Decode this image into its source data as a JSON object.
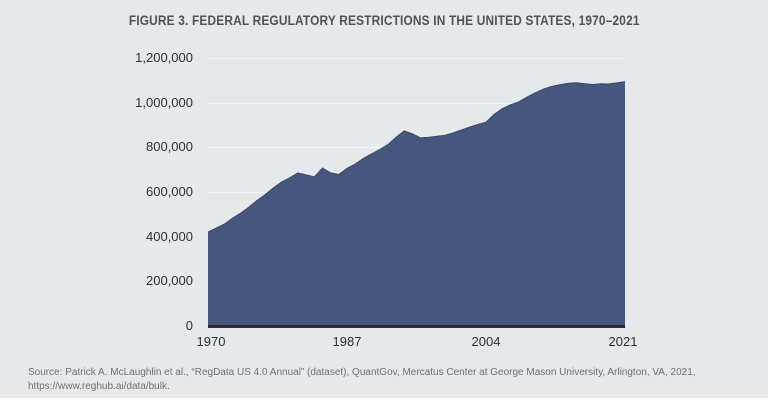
{
  "header": {
    "title": "FIGURE 3. FEDERAL REGULATORY RESTRICTIONS IN THE UNITED STATES, 1970–2021"
  },
  "chart_data": {
    "type": "area",
    "title": "FIGURE 3. FEDERAL REGULATORY RESTRICTIONS IN THE UNITED STATES, 1970–2021",
    "xlabel": "",
    "ylabel": "",
    "xlim": [
      1970,
      2021
    ],
    "ylim": [
      0,
      1200000
    ],
    "grid": true,
    "legend": false,
    "x": [
      1970,
      1971,
      1972,
      1973,
      1974,
      1975,
      1976,
      1977,
      1978,
      1979,
      1980,
      1981,
      1982,
      1983,
      1984,
      1985,
      1986,
      1987,
      1988,
      1989,
      1990,
      1991,
      1992,
      1993,
      1994,
      1995,
      1996,
      1997,
      1998,
      1999,
      2000,
      2001,
      2002,
      2003,
      2004,
      2005,
      2006,
      2007,
      2008,
      2009,
      2010,
      2011,
      2012,
      2013,
      2014,
      2015,
      2016,
      2017,
      2018,
      2019,
      2020,
      2021
    ],
    "series": [
      {
        "name": "Federal regulatory restrictions",
        "values": [
          420000,
          438000,
          456000,
          482000,
          505000,
          532000,
          562000,
          588000,
          618000,
          645000,
          663000,
          685000,
          676000,
          667000,
          707000,
          685000,
          678000,
          705000,
          725000,
          750000,
          770000,
          790000,
          812000,
          845000,
          873000,
          860000,
          842000,
          845000,
          849000,
          854000,
          864000,
          877000,
          890000,
          902000,
          912000,
          947000,
          973000,
          990000,
          1003000,
          1024000,
          1043000,
          1060000,
          1072000,
          1080000,
          1086000,
          1089000,
          1085000,
          1081000,
          1084000,
          1083000,
          1088000,
          1094000
        ]
      }
    ],
    "ytick_labels": [
      "1,200,000",
      "1,000,000",
      "800,000",
      "600,000",
      "400,000",
      "200,000",
      "0"
    ],
    "xtick_labels": [
      "1970",
      "1987",
      "2004",
      "2021"
    ],
    "colors": {
      "area_fill": "#46567c",
      "area_edge": "#3b4c6e",
      "baseline": "#262b36",
      "panel_background": "#e7e8ea",
      "gridline": "#f4f5f6"
    }
  },
  "footer": {
    "source_line1": "Source: Patrick A. McLaughlin et al., “RegData US 4.0 Annual” (dataset), QuantGov, Mercatus Center at George Mason University, Arlington, VA, 2021,",
    "source_line2": "https://www.reghub.ai/data/bulk."
  }
}
